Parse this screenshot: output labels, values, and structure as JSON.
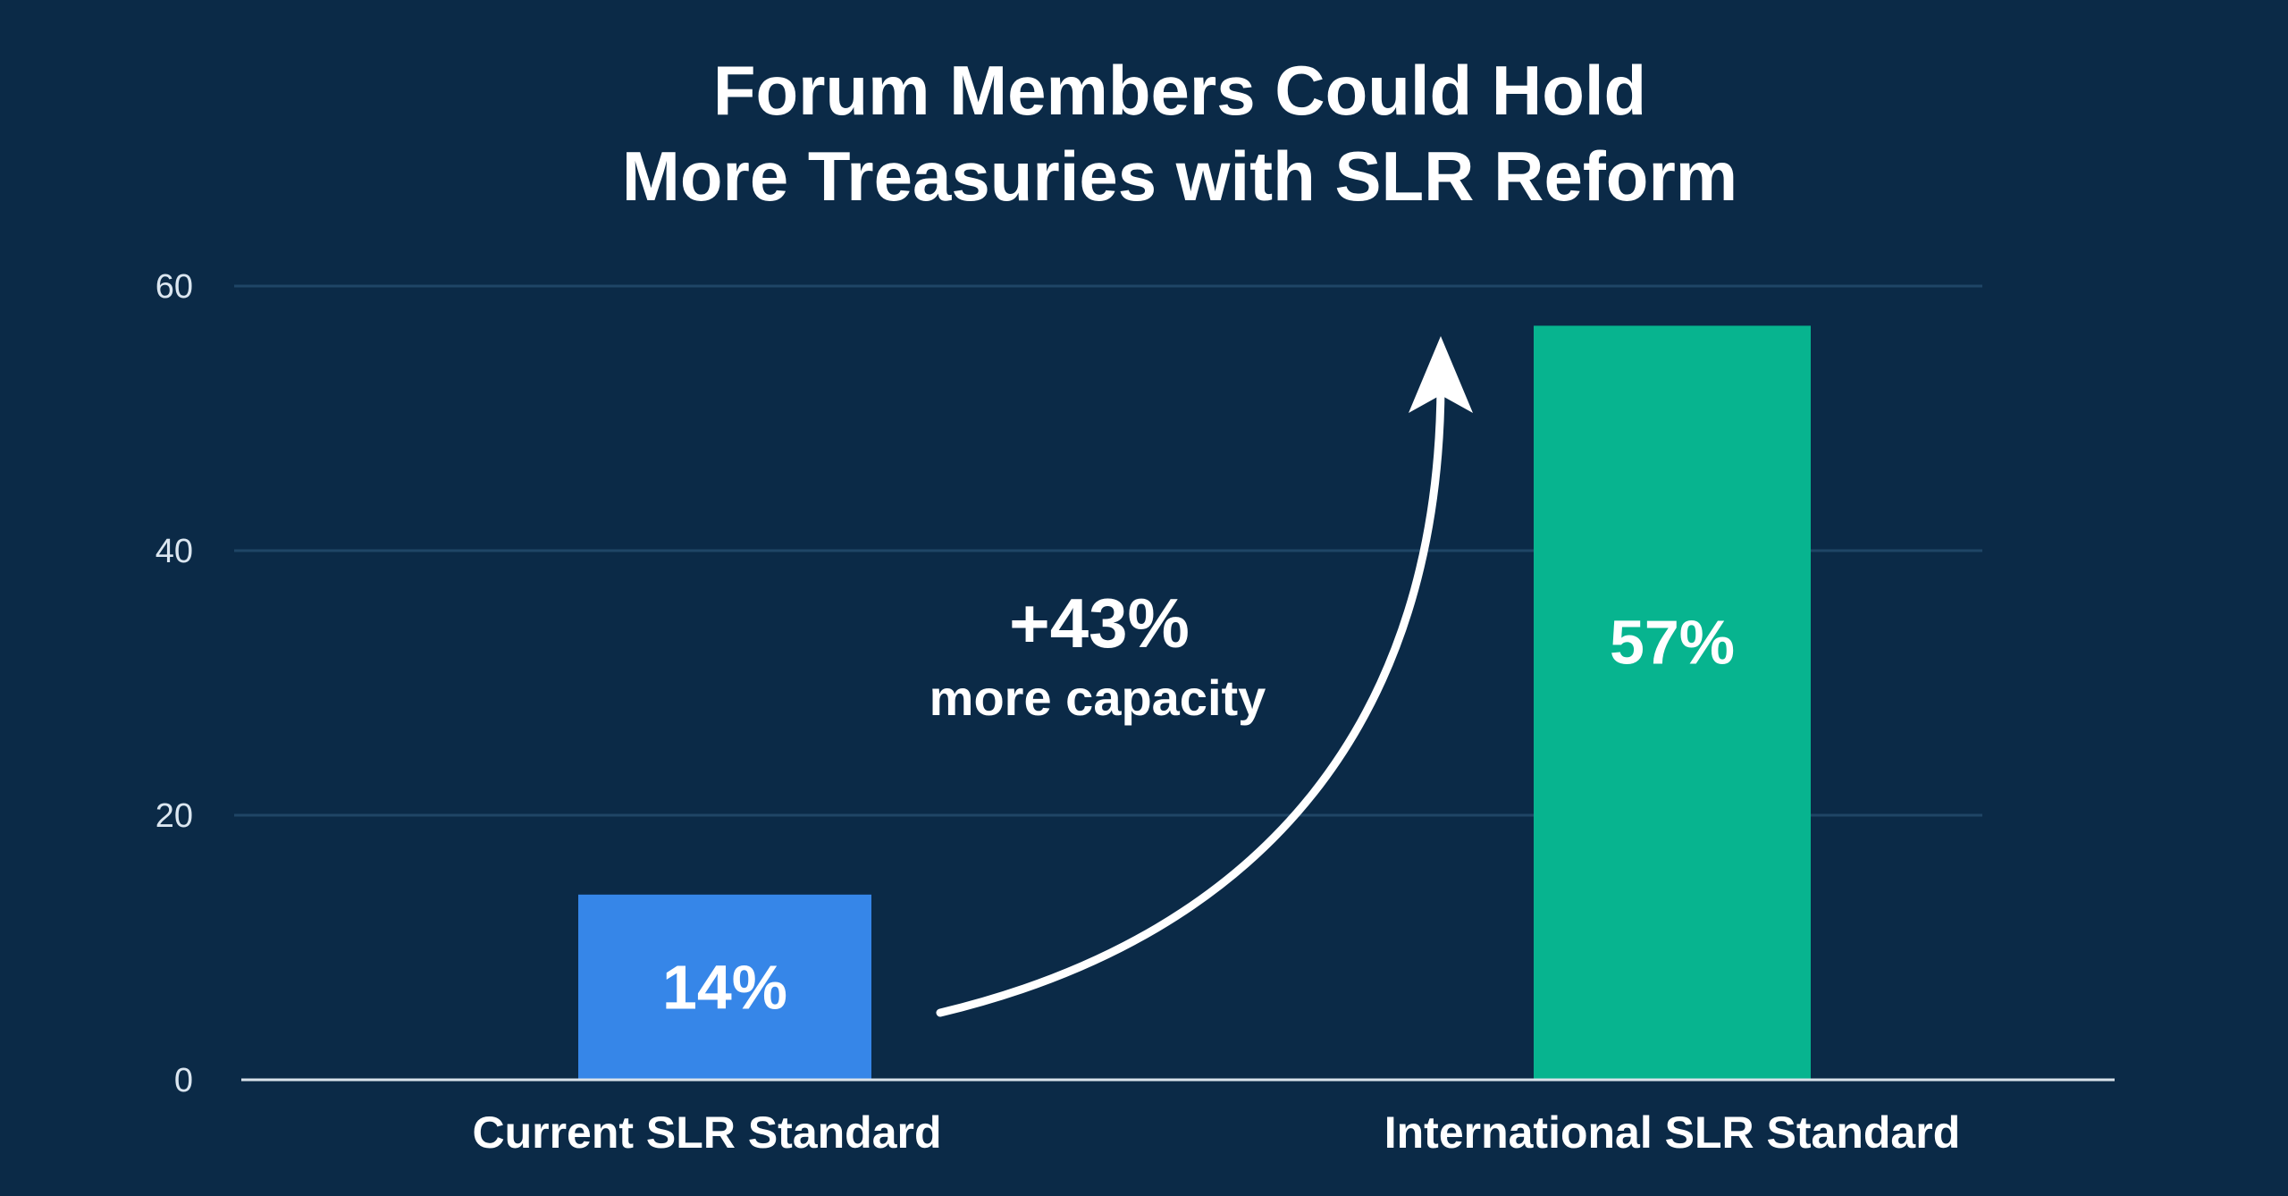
{
  "colors": {
    "background": "#0b2a47",
    "gridline": "#1f4566",
    "axis": "#d9e2ea",
    "bar_current": "#3686e8",
    "bar_international": "#07b48f",
    "text": "#ffffff"
  },
  "chart_data": {
    "type": "bar",
    "title": [
      "Forum Members Could Hold",
      "More Treasuries with SLR Reform"
    ],
    "xlabel": "",
    "ylabel": "",
    "ylim": [
      0,
      60
    ],
    "yticks": [
      0,
      20,
      40,
      60
    ],
    "grid": true,
    "categories": [
      "Current SLR Standard",
      "International SLR Standard"
    ],
    "values": [
      14,
      57
    ],
    "data_labels": [
      "14%",
      "57%"
    ],
    "annotation": {
      "value": "+43%",
      "text": "more capacity"
    }
  }
}
